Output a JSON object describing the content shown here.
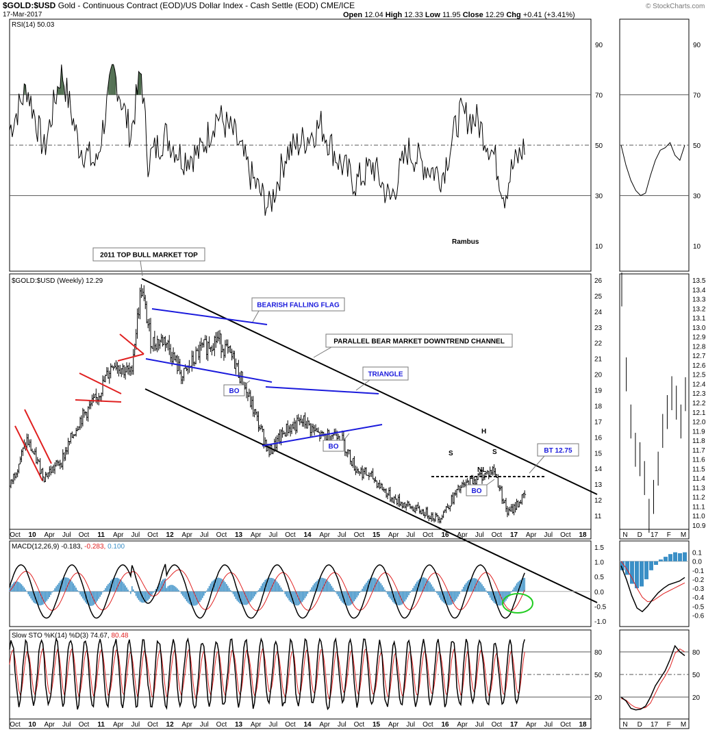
{
  "header": {
    "symbol": "$GOLD:$USD",
    "description": "Gold - Continuous Contract (EOD)/US Dollar Index - Cash Settle (EOD)",
    "exchange": "CME/ICE",
    "date": "17-Mar-2017",
    "open_label": "Open",
    "open": "12.04",
    "high_label": "High",
    "high": "12.33",
    "low_label": "Low",
    "low": "11.95",
    "close_label": "Close",
    "close": "12.29",
    "chg_label": "Chg",
    "chg": "+0.41 (+3.41%)",
    "watermark": "© StockCharts.com"
  },
  "chart_data": [
    {
      "type": "line",
      "panel": "rsi",
      "label": "RSI(14)",
      "last_value": "50.03",
      "y_ticks": [
        90,
        70,
        50,
        30,
        10
      ],
      "ylim": [
        0,
        100
      ],
      "reference_lines": [
        70,
        50,
        30
      ],
      "annotations": [
        "Rambus"
      ],
      "x": [
        2009.75,
        2010.0,
        2010.25,
        2010.5,
        2010.75,
        2011.0,
        2011.25,
        2011.5,
        2011.65,
        2011.75,
        2012.0,
        2012.25,
        2012.5,
        2012.75,
        2013.0,
        2013.25,
        2013.5,
        2013.75,
        2014.0,
        2014.25,
        2014.5,
        2014.75,
        2015.0,
        2015.25,
        2015.5,
        2015.75,
        2016.0,
        2016.25,
        2016.5,
        2016.75,
        2016.9,
        2017.0,
        2017.2
      ],
      "values": [
        56,
        73,
        48,
        80,
        50,
        42,
        80,
        54,
        80,
        44,
        54,
        45,
        47,
        62,
        54,
        37,
        25,
        47,
        52,
        58,
        44,
        35,
        42,
        28,
        48,
        42,
        38,
        62,
        60,
        46,
        30,
        40,
        50
      ]
    },
    {
      "type": "line",
      "panel": "price",
      "label": "$GOLD:$USD (Weekly)",
      "last_value": "12.29",
      "y_ticks": [
        26,
        25,
        24,
        23,
        22,
        21,
        20,
        19,
        18,
        17,
        16,
        15,
        14,
        13,
        12,
        11
      ],
      "x_ticks": [
        "Oct",
        "10",
        "Apr",
        "Jul",
        "Oct",
        "11",
        "Apr",
        "Jul",
        "Oct",
        "12",
        "Apr",
        "Jul",
        "Oct",
        "13",
        "Apr",
        "Jul",
        "Oct",
        "14",
        "Apr",
        "Jul",
        "Oct",
        "15",
        "Apr",
        "Jul",
        "Oct",
        "16",
        "Apr",
        "Jul",
        "Oct",
        "17",
        "Apr",
        "Jul",
        "Oct",
        "18"
      ],
      "x": [
        2009.75,
        2010.0,
        2010.25,
        2010.5,
        2010.75,
        2011.0,
        2011.25,
        2011.5,
        2011.65,
        2011.8,
        2012.0,
        2012.25,
        2012.5,
        2012.75,
        2013.0,
        2013.25,
        2013.5,
        2013.75,
        2014.0,
        2014.25,
        2014.5,
        2014.75,
        2015.0,
        2015.25,
        2015.5,
        2015.75,
        2015.95,
        2016.25,
        2016.5,
        2016.75,
        2016.95,
        2017.2
      ],
      "values": [
        12.8,
        15.8,
        13.5,
        14.5,
        17.0,
        18.4,
        20.8,
        20.0,
        25.5,
        22.0,
        22.2,
        19.8,
        21.5,
        22.3,
        20.8,
        18.0,
        15.0,
        16.5,
        17.0,
        16.0,
        16.3,
        14.0,
        13.4,
        12.2,
        11.6,
        11.2,
        10.8,
        12.7,
        13.4,
        13.9,
        11.1,
        12.29
      ],
      "annotations": [
        "2011 TOP BULL MARKET TOP",
        "BEARISH FALLING FLAG",
        "PARALLEL BEAR MARKET  DOWNTREND CHANNEL",
        "TRIANGLE",
        "BO",
        "BO",
        "BO",
        "BT 12.75",
        "NL",
        "S",
        "H",
        "S"
      ]
    },
    {
      "type": "line",
      "panel": "macd",
      "label": "MACD(12,26,9)",
      "values_text": [
        "-0.183",
        "-0.283",
        "0.100"
      ],
      "y_ticks": [
        "1.5",
        "1.0",
        "0.5",
        "0.0",
        "-0.5",
        "-1.0"
      ],
      "series_colors": {
        "macd": "#000000",
        "signal": "#e02020",
        "histogram": "#3a8fc6"
      }
    },
    {
      "type": "line",
      "panel": "sto",
      "label": "Slow STO %K(14) %D(3)",
      "values_text": [
        "74.67",
        "80.48"
      ],
      "y_ticks": [
        80,
        50,
        20
      ],
      "series_colors": {
        "k": "#000000",
        "d": "#e02020"
      }
    },
    {
      "type": "line",
      "panel": "daily",
      "rsi_y_ticks": [
        90,
        70,
        50,
        30,
        10
      ],
      "price_y_ticks": [
        "13.5",
        "13.4",
        "13.3",
        "13.2",
        "13.1",
        "13.0",
        "12.9",
        "12.8",
        "12.7",
        "12.6",
        "12.5",
        "12.4",
        "12.3",
        "12.2",
        "12.1",
        "12.0",
        "11.9",
        "11.8",
        "11.7",
        "11.6",
        "11.5",
        "11.4",
        "11.3",
        "11.2",
        "11.1",
        "11.0",
        "10.9"
      ],
      "macd_y_ticks": [
        "0.1",
        "0.0",
        "-0.1",
        "-0.2",
        "-0.3",
        "-0.4",
        "-0.5",
        "-0.6"
      ],
      "sto_y_ticks": [
        80,
        50,
        20
      ],
      "x_ticks": [
        "N",
        "D",
        "17",
        "F",
        "M"
      ]
    }
  ],
  "colors": {
    "channel": "#000000",
    "flag": "#1a1adc",
    "triangle_red": "#e02020",
    "rsi_fill": "#4d6b4d",
    "circle": "#22cc22"
  }
}
